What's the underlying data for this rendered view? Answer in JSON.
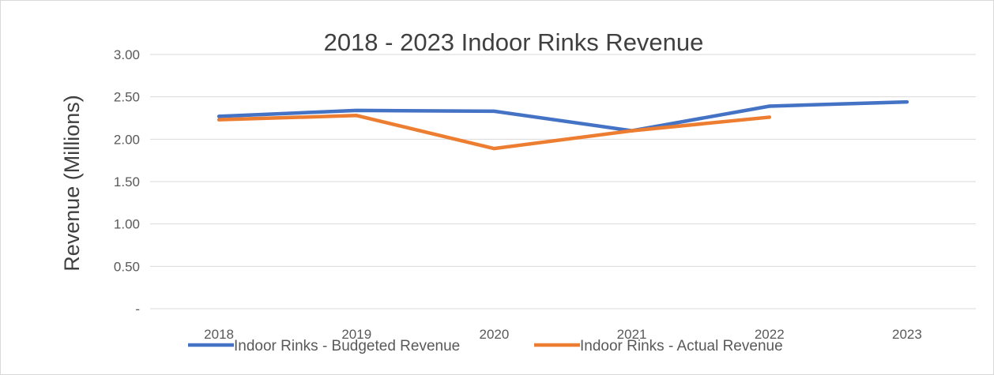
{
  "chart_data": {
    "type": "line",
    "title": "2018 - 2023 Indoor Rinks Revenue",
    "xlabel": "",
    "ylabel": "Revenue (Millions)",
    "categories": [
      "2018",
      "2019",
      "2020",
      "2021",
      "2022",
      "2023"
    ],
    "ylim": [
      0,
      3
    ],
    "yticks": [
      0,
      0.5,
      1,
      1.5,
      2,
      2.5,
      3
    ],
    "ytick_labels": [
      "-",
      "0.50",
      "1.00",
      "1.50",
      "2.00",
      "2.50",
      "3.00"
    ],
    "grid": true,
    "legend_position": "bottom",
    "series": [
      {
        "name": "Indoor Rinks - Budgeted Revenue",
        "color": "#4472C4",
        "values": [
          2.27,
          2.34,
          2.33,
          2.1,
          2.39,
          2.44
        ]
      },
      {
        "name": "Indoor Rinks - Actual Revenue",
        "color": "#ED7D31",
        "values": [
          2.23,
          2.28,
          1.89,
          2.1,
          2.26,
          null
        ]
      }
    ]
  }
}
